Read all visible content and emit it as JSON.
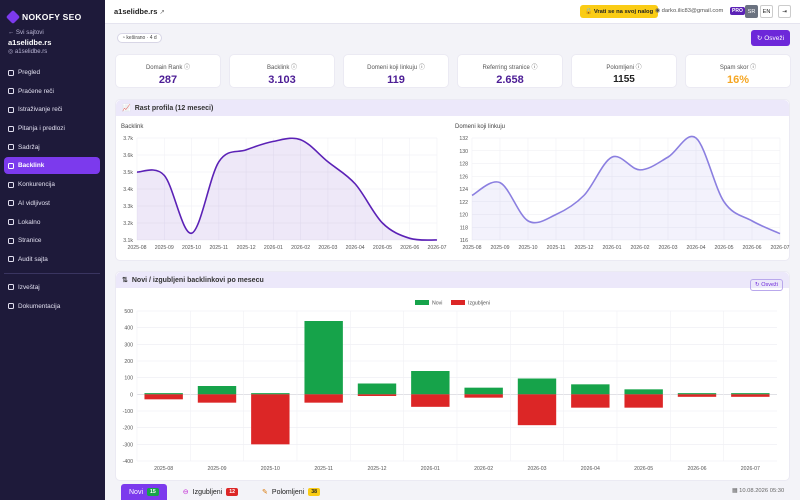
{
  "brand": {
    "name": "NOKOFY SEO"
  },
  "sidebar": {
    "back_label": "← Svi sajtovi",
    "site_name": "a1selidbe.rs",
    "site_url": "a1selidbe.rs",
    "items": [
      {
        "label": "Pregled"
      },
      {
        "label": "Praćene reči"
      },
      {
        "label": "Istraživanje reči"
      },
      {
        "label": "Pitanja i predlozi"
      },
      {
        "label": "Sadržaj"
      },
      {
        "label": "Backlink",
        "active": true
      },
      {
        "label": "Konkurencija"
      },
      {
        "label": "AI vidljivost"
      },
      {
        "label": "Lokalno"
      },
      {
        "label": "Stranice"
      },
      {
        "label": "Audit sajta"
      }
    ],
    "bottom_items": [
      {
        "label": "Izveštaj"
      },
      {
        "label": "Dokumentacija"
      }
    ]
  },
  "topbar": {
    "title": "a1selidbe.rs",
    "return_label": "Vrati se na svoj nalog",
    "user_email": "darko.ilic83@gmail.com",
    "plan_badge": "PRO",
    "lang_sr": "SR",
    "lang_en": "EN",
    "logout_icon": "⇥"
  },
  "cache_label": "keširano · 4 d",
  "refresh_label": "Osveži",
  "stats": [
    {
      "label": "Domain Rank",
      "value": "287",
      "style": "purple"
    },
    {
      "label": "Backlink",
      "value": "3.103",
      "style": "purple"
    },
    {
      "label": "Domeni koji linkuju",
      "value": "119",
      "style": "purple"
    },
    {
      "label": "Referring stranice",
      "value": "2.658",
      "style": "purple"
    },
    {
      "label": "Polomljeni",
      "value": "1155",
      "style": "plain"
    },
    {
      "label": "Spam skor",
      "value": "16%",
      "style": "orange"
    }
  ],
  "growth_panel": {
    "title": "Rast profila (12 meseci)"
  },
  "newlost_panel": {
    "title": "Novi / izgubljeni backlinkovi po mesecu",
    "refresh_label": "Osveži"
  },
  "tabs": [
    {
      "label": "Novi",
      "count": "15",
      "badge": "green"
    },
    {
      "label": "Izgubljeni",
      "count": "12",
      "badge": "red"
    },
    {
      "label": "Polomljeni",
      "count": "38",
      "badge": "yellow"
    }
  ],
  "tabs_date": "10.08.2026 05:30",
  "chart_data": [
    {
      "type": "area",
      "title": "Backlink",
      "x": [
        "2025-08",
        "2025-09",
        "2025-10",
        "2025-11",
        "2025-12",
        "2026-01",
        "2026-02",
        "2026-03",
        "2026-04",
        "2026-05",
        "2026-06",
        "2026-07"
      ],
      "y": [
        3.5,
        3.48,
        3.14,
        3.56,
        3.63,
        3.68,
        3.69,
        3.56,
        3.43,
        3.2,
        3.11,
        3.1
      ],
      "yticks": [
        "3.1k",
        "3.2k",
        "3.3k",
        "3.4k",
        "3.5k",
        "3.6k",
        "3.7k"
      ],
      "ylim": [
        3.1,
        3.7
      ],
      "color": "#5b21b6"
    },
    {
      "type": "area",
      "title": "Domeni koji linkuju",
      "x": [
        "2025-08",
        "2025-09",
        "2025-10",
        "2025-11",
        "2025-12",
        "2026-01",
        "2026-02",
        "2026-03",
        "2026-04",
        "2026-05",
        "2026-06",
        "2026-07"
      ],
      "y": [
        123,
        125,
        119,
        120,
        123,
        129,
        127,
        129,
        132,
        122,
        119,
        117
      ],
      "yticks": [
        "116",
        "118",
        "120",
        "122",
        "124",
        "126",
        "128",
        "130",
        "132"
      ],
      "ylim": [
        116,
        132
      ],
      "color": "#8b7fe0"
    },
    {
      "type": "bar",
      "title": "",
      "categories": [
        "2025-08",
        "2025-09",
        "2025-10",
        "2025-11",
        "2025-12",
        "2026-01",
        "2026-02",
        "2026-03",
        "2026-04",
        "2026-05",
        "2026-06",
        "2026-07"
      ],
      "series": [
        {
          "name": "Novi",
          "color": "#16a34a",
          "values": [
            5,
            50,
            0,
            440,
            65,
            140,
            40,
            95,
            60,
            30,
            0,
            0
          ]
        },
        {
          "name": "Izgubljeni",
          "color": "#dc2626",
          "values": [
            -30,
            -50,
            -300,
            -50,
            -10,
            -75,
            -20,
            -185,
            -80,
            -80,
            -15,
            -15
          ]
        }
      ],
      "yticks": [
        500,
        400,
        300,
        200,
        100,
        0,
        -100,
        -200,
        -300,
        -400
      ],
      "ylim": [
        -400,
        500
      ],
      "legend": "top"
    }
  ]
}
